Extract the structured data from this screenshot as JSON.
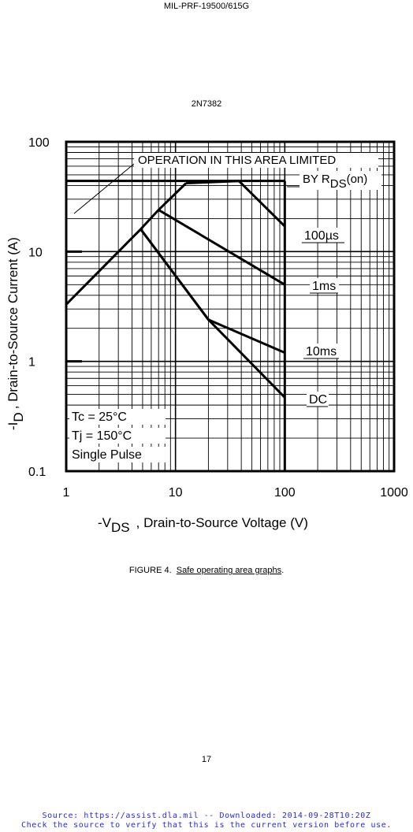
{
  "header": {
    "doc_number": "MIL-PRF-19500/615G",
    "part_number": "2N7382"
  },
  "caption": {
    "prefix": "FIGURE 4.",
    "text": "Safe operating area graphs",
    "suffix": "."
  },
  "page_number": "17",
  "footer": {
    "line1": "Source: https://assist.dla.mil -- Downloaded: 2014-09-28T10:20Z",
    "line2": "Check the source to verify that this is the current version before use."
  },
  "colors": {
    "plot_lines": "#000000",
    "footer_text": "#2a2ad0"
  },
  "chart_data": {
    "type": "line",
    "x_scale": "log",
    "y_scale": "log",
    "xlim": [
      1,
      1000
    ],
    "ylim": [
      0.1,
      100
    ],
    "grid": true,
    "x_ticks": [
      "1",
      "10",
      "100",
      "1000"
    ],
    "y_ticks": [
      "100",
      "10",
      "1",
      "0.1"
    ],
    "xlabel": {
      "main": "-V",
      "sub": "DS",
      "rest": ", Drain-to-Source Voltage (V)"
    },
    "ylabel": {
      "main": "-I",
      "sub": "D",
      "rest": ", Drain-to-Source Current (A)"
    },
    "annotation": {
      "line1": "OPERATION IN THIS AREA LIMITED",
      "line2_prefix": "BY R",
      "line2_sub": "DS",
      "line2_suffix": "(on)"
    },
    "conditions": [
      "Tc = 25°C",
      "Tj = 150°C",
      "Single Pulse"
    ],
    "limit_lines": {
      "current_limit": 44,
      "voltage_limit": 100
    },
    "series": [
      {
        "name": "R_DS(on) limit",
        "points": [
          [
            1,
            3.3
          ],
          [
            4.8,
            16
          ],
          [
            7,
            24
          ],
          [
            12.5,
            42
          ]
        ]
      },
      {
        "name": "100µs",
        "points": [
          [
            12.5,
            42
          ],
          [
            38,
            44
          ],
          [
            100,
            17
          ]
        ]
      },
      {
        "name": "1ms",
        "points": [
          [
            7,
            24
          ],
          [
            100,
            5
          ]
        ]
      },
      {
        "name": "10ms",
        "points": [
          [
            4.8,
            16
          ],
          [
            20,
            2.4
          ],
          [
            100,
            1.2
          ]
        ]
      },
      {
        "name": "DC",
        "points": [
          [
            4.8,
            16
          ],
          [
            20,
            2.4
          ],
          [
            100,
            0.47
          ]
        ]
      }
    ],
    "series_labels": [
      "100µs",
      "1ms",
      "10ms",
      "DC"
    ]
  }
}
